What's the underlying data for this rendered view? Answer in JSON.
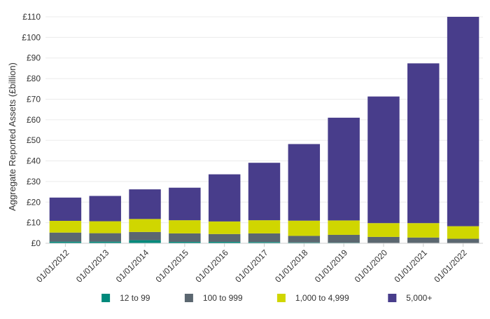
{
  "chart_data": {
    "type": "bar",
    "stacked": true,
    "title": "",
    "xlabel": "",
    "ylabel": "Aggregate Reported Assets (£billion)",
    "ylim": [
      0,
      110
    ],
    "ytick_values": [
      0,
      10,
      20,
      30,
      40,
      50,
      60,
      70,
      80,
      90,
      100,
      110
    ],
    "ytick_labels": [
      "£0",
      "£10",
      "£20",
      "£30",
      "£40",
      "£50",
      "£60",
      "£70",
      "£80",
      "£90",
      "£100",
      "£110"
    ],
    "grid": true,
    "legend_position": "bottom",
    "categories": [
      "01/01/2012",
      "01/01/2013",
      "01/01/2014",
      "01/01/2015",
      "01/01/2016",
      "01/01/2017",
      "01/01/2018",
      "01/01/2019",
      "01/01/2020",
      "01/01/2021",
      "01/01/2022"
    ],
    "series": [
      {
        "name": "12 to 99",
        "color": "#00897b",
        "values": [
          0.8,
          0.8,
          1.5,
          0.7,
          0.7,
          0.6,
          0.4,
          0.3,
          0.2,
          0.2,
          0.1
        ]
      },
      {
        "name": "100 to 999",
        "color": "#5b6770",
        "values": [
          4.4,
          4.1,
          4.0,
          4.1,
          3.8,
          4.2,
          3.2,
          3.8,
          2.9,
          2.6,
          2.1
        ]
      },
      {
        "name": "1,000 to 4,999",
        "color": "#d0d600",
        "values": [
          5.7,
          5.8,
          6.3,
          6.4,
          6.1,
          6.4,
          7.4,
          7.0,
          6.7,
          7.0,
          6.1
        ]
      },
      {
        "name": "5,000+",
        "color": "#483d8b",
        "values": [
          11.3,
          12.3,
          14.4,
          15.8,
          22.9,
          27.9,
          37.2,
          49.9,
          61.5,
          77.6,
          101.7
        ]
      }
    ]
  }
}
